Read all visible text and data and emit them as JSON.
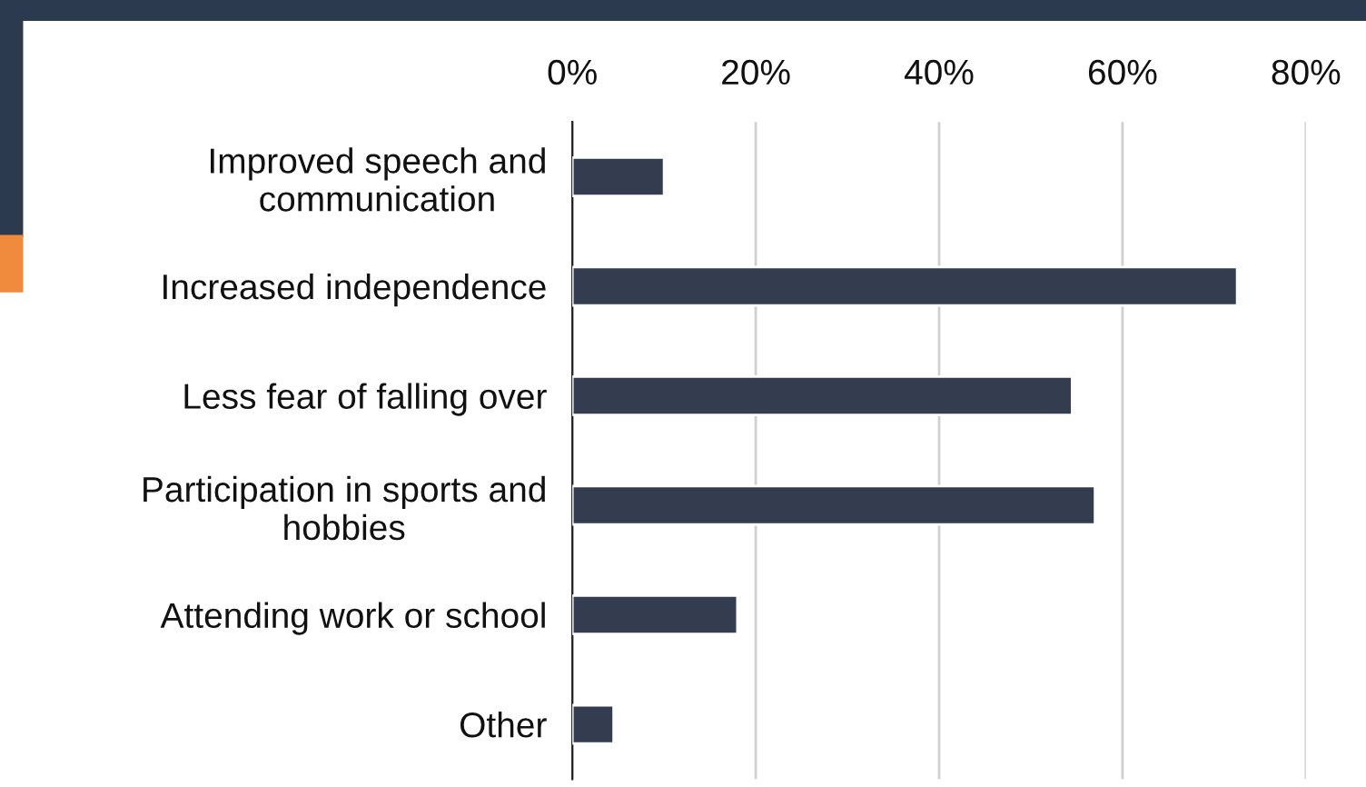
{
  "chart_data": {
    "type": "bar",
    "orientation": "horizontal",
    "categories": [
      "Improved speech and\ncommunication",
      "Increased independence",
      "Less fear of falling over",
      "Participation in sports and\nhobbies",
      "Attending work or school",
      "Other"
    ],
    "values": [
      10,
      72.5,
      54.5,
      57,
      18,
      4.5
    ],
    "color": "#333d4f",
    "xlim": [
      0,
      80
    ],
    "xticks": [
      {
        "value": 0,
        "label": "0%"
      },
      {
        "value": 20,
        "label": "20%"
      },
      {
        "value": 40,
        "label": "40%"
      },
      {
        "value": 60,
        "label": "60%"
      },
      {
        "value": 80,
        "label": "80%"
      }
    ],
    "grid": "x"
  }
}
